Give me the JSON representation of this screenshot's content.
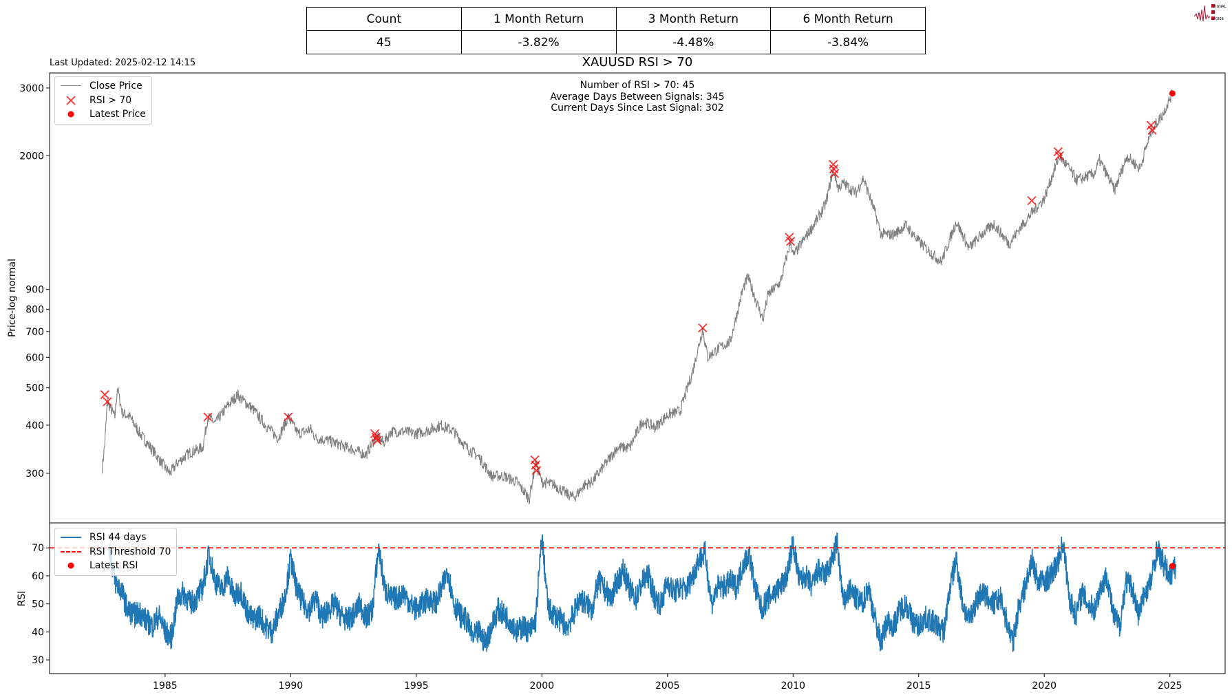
{
  "stats_table": {
    "headers": [
      "Count",
      "1 Month Return",
      "3 Month Return",
      "6 Month Return"
    ],
    "values": [
      "45",
      "-3.82%",
      "-4.48%",
      "-3.84%"
    ]
  },
  "last_updated": "Last Updated: 2025-02-12 14:15",
  "logo_text": "Signal 2 Noise",
  "chart_data": [
    {
      "type": "line",
      "title": "XAUUSD RSI > 70",
      "annotations": [
        "Number of RSI > 70: 45",
        "Average Days Between Signals: 345",
        "Current Days Since Last Signal: 302"
      ],
      "ylabel": "Price-log normal",
      "xlabel": "",
      "yscale": "log",
      "ylim": [
        223,
        3283
      ],
      "xlim": [
        1980.4,
        2027.2
      ],
      "yticks": [
        300,
        400,
        500,
        600,
        700,
        800,
        900,
        2000,
        3000
      ],
      "ytick_labels": [
        "300",
        "400",
        "500",
        "600",
        "700",
        "800",
        "900",
        "2000",
        "3000"
      ],
      "grid": false,
      "legend_position": "top-left",
      "legend": [
        "Close Price",
        "RSI > 70",
        "Latest Price"
      ],
      "colors": {
        "close": "#808080",
        "signal": "#ff0000",
        "latest": "#ff0000"
      },
      "close_price": {
        "x": [
          1982.5,
          1982.6,
          1982.7,
          1983.0,
          1983.1,
          1983.3,
          1983.6,
          1984.0,
          1984.5,
          1985.0,
          1985.2,
          1985.5,
          1986.0,
          1986.5,
          1986.7,
          1987.0,
          1987.5,
          1987.9,
          1988.0,
          1988.5,
          1989.0,
          1989.5,
          1989.9,
          1990.3,
          1990.8,
          1991.0,
          1991.5,
          1992.0,
          1992.5,
          1993.0,
          1993.4,
          1993.7,
          1994.0,
          1994.5,
          1995.0,
          1995.5,
          1996.0,
          1996.5,
          1997.0,
          1997.5,
          1998.0,
          1998.5,
          1999.0,
          1999.5,
          1999.75,
          2000.0,
          2000.5,
          2001.0,
          2001.3,
          2001.7,
          2002.0,
          2002.5,
          2003.0,
          2003.5,
          2004.0,
          2004.5,
          2005.0,
          2005.5,
          2006.0,
          2006.4,
          2006.6,
          2007.0,
          2007.5,
          2008.0,
          2008.2,
          2008.8,
          2009.0,
          2009.5,
          2009.9,
          2010.0,
          2010.5,
          2011.0,
          2011.3,
          2011.6,
          2011.8,
          2012.0,
          2012.5,
          2012.8,
          2013.3,
          2013.5,
          2014.0,
          2014.5,
          2015.0,
          2015.9,
          2016.5,
          2017.0,
          2017.5,
          2018.0,
          2018.6,
          2019.0,
          2019.5,
          2020.0,
          2020.6,
          2021.0,
          2021.3,
          2022.0,
          2022.2,
          2022.8,
          2023.3,
          2023.8,
          2024.0,
          2024.3,
          2024.7,
          2025.1
        ],
        "y": [
          310,
          360,
          460,
          420,
          500,
          430,
          420,
          380,
          345,
          310,
          300,
          320,
          340,
          350,
          420,
          405,
          450,
          480,
          470,
          440,
          400,
          370,
          420,
          380,
          390,
          370,
          365,
          355,
          345,
          335,
          375,
          360,
          385,
          385,
          380,
          388,
          400,
          385,
          350,
          330,
          295,
          295,
          285,
          258,
          320,
          285,
          280,
          265,
          260,
          280,
          285,
          315,
          350,
          350,
          410,
          395,
          425,
          435,
          550,
          710,
          600,
          630,
          660,
          900,
          970,
          750,
          870,
          940,
          1200,
          1100,
          1230,
          1380,
          1500,
          1850,
          1650,
          1700,
          1600,
          1750,
          1400,
          1250,
          1250,
          1320,
          1200,
          1060,
          1350,
          1150,
          1250,
          1330,
          1180,
          1290,
          1420,
          1550,
          2000,
          1850,
          1730,
          1800,
          1950,
          1630,
          2000,
          1850,
          2050,
          2350,
          2550,
          2905
        ]
      },
      "signals": {
        "x": [
          1982.6,
          1982.7,
          1986.7,
          1989.9,
          1993.35,
          1993.4,
          1993.45,
          1999.72,
          1999.75,
          1999.78,
          2006.4,
          2009.85,
          2009.9,
          2011.6,
          2011.62,
          2011.65,
          2019.5,
          2020.55,
          2020.6,
          2024.25,
          2024.3
        ],
        "y": [
          480,
          460,
          420,
          420,
          380,
          372,
          365,
          325,
          315,
          305,
          715,
          1230,
          1200,
          1900,
          1850,
          1800,
          1530,
          2050,
          2000,
          2400,
          2330
        ]
      },
      "latest_price": {
        "x": 2025.1,
        "y": 2905
      }
    },
    {
      "type": "line",
      "ylabel": "RSI",
      "xlabel": "",
      "ylim": [
        25.1,
        78.9
      ],
      "xlim": [
        1980.4,
        2027.2
      ],
      "yticks": [
        30,
        40,
        50,
        60,
        70
      ],
      "ytick_labels": [
        "30",
        "40",
        "50",
        "60",
        "70"
      ],
      "xticks": [
        1985,
        1990,
        1995,
        2000,
        2005,
        2010,
        2015,
        2020,
        2025
      ],
      "xtick_labels": [
        "1985",
        "1990",
        "1995",
        "2000",
        "2005",
        "2010",
        "2015",
        "2020",
        "2025"
      ],
      "legend_position": "top-left",
      "legend": [
        "RSI 44 days",
        "RSI Threshold 70",
        "Latest RSI"
      ],
      "colors": {
        "rsi": "#1f77b4",
        "threshold": "#ff0000",
        "latest": "#ff0000"
      },
      "threshold": 70,
      "rsi": {
        "x_start": 1982.75,
        "x_step": 0.25,
        "values": [
          72,
          58,
          55,
          48,
          46,
          47,
          44,
          42,
          46,
          40,
          38,
          52,
          54,
          50,
          52,
          56,
          68,
          58,
          55,
          60,
          52,
          55,
          48,
          44,
          46,
          42,
          40,
          46,
          52,
          66,
          55,
          50,
          48,
          52,
          45,
          48,
          50,
          46,
          44,
          46,
          50,
          45,
          48,
          70,
          55,
          52,
          52,
          54,
          50,
          48,
          50,
          52,
          50,
          55,
          62,
          50,
          46,
          44,
          38,
          40,
          36,
          42,
          48,
          46,
          44,
          40,
          42,
          40,
          44,
          74,
          48,
          46,
          44,
          42,
          46,
          52,
          50,
          48,
          58,
          55,
          52,
          58,
          62,
          55,
          52,
          58,
          60,
          52,
          50,
          58,
          54,
          56,
          55,
          60,
          66,
          68,
          50,
          56,
          56,
          58,
          56,
          64,
          68,
          55,
          48,
          52,
          54,
          56,
          60,
          72,
          58,
          60,
          56,
          62,
          60,
          64,
          72,
          50,
          55,
          52,
          50,
          56,
          45,
          36,
          44,
          42,
          48,
          50,
          44,
          42,
          45,
          44,
          42,
          40,
          56,
          66,
          50,
          44,
          50,
          54,
          52,
          50,
          52,
          44,
          36,
          50,
          56,
          66,
          58,
          58,
          60,
          64,
          72,
          52,
          46,
          54,
          50,
          48,
          56,
          60,
          46,
          42,
          58,
          56,
          46,
          54,
          58,
          70,
          64,
          60,
          63.5
        ]
      },
      "latest_rsi": {
        "x": 2025.1,
        "y": 63.5
      }
    }
  ]
}
